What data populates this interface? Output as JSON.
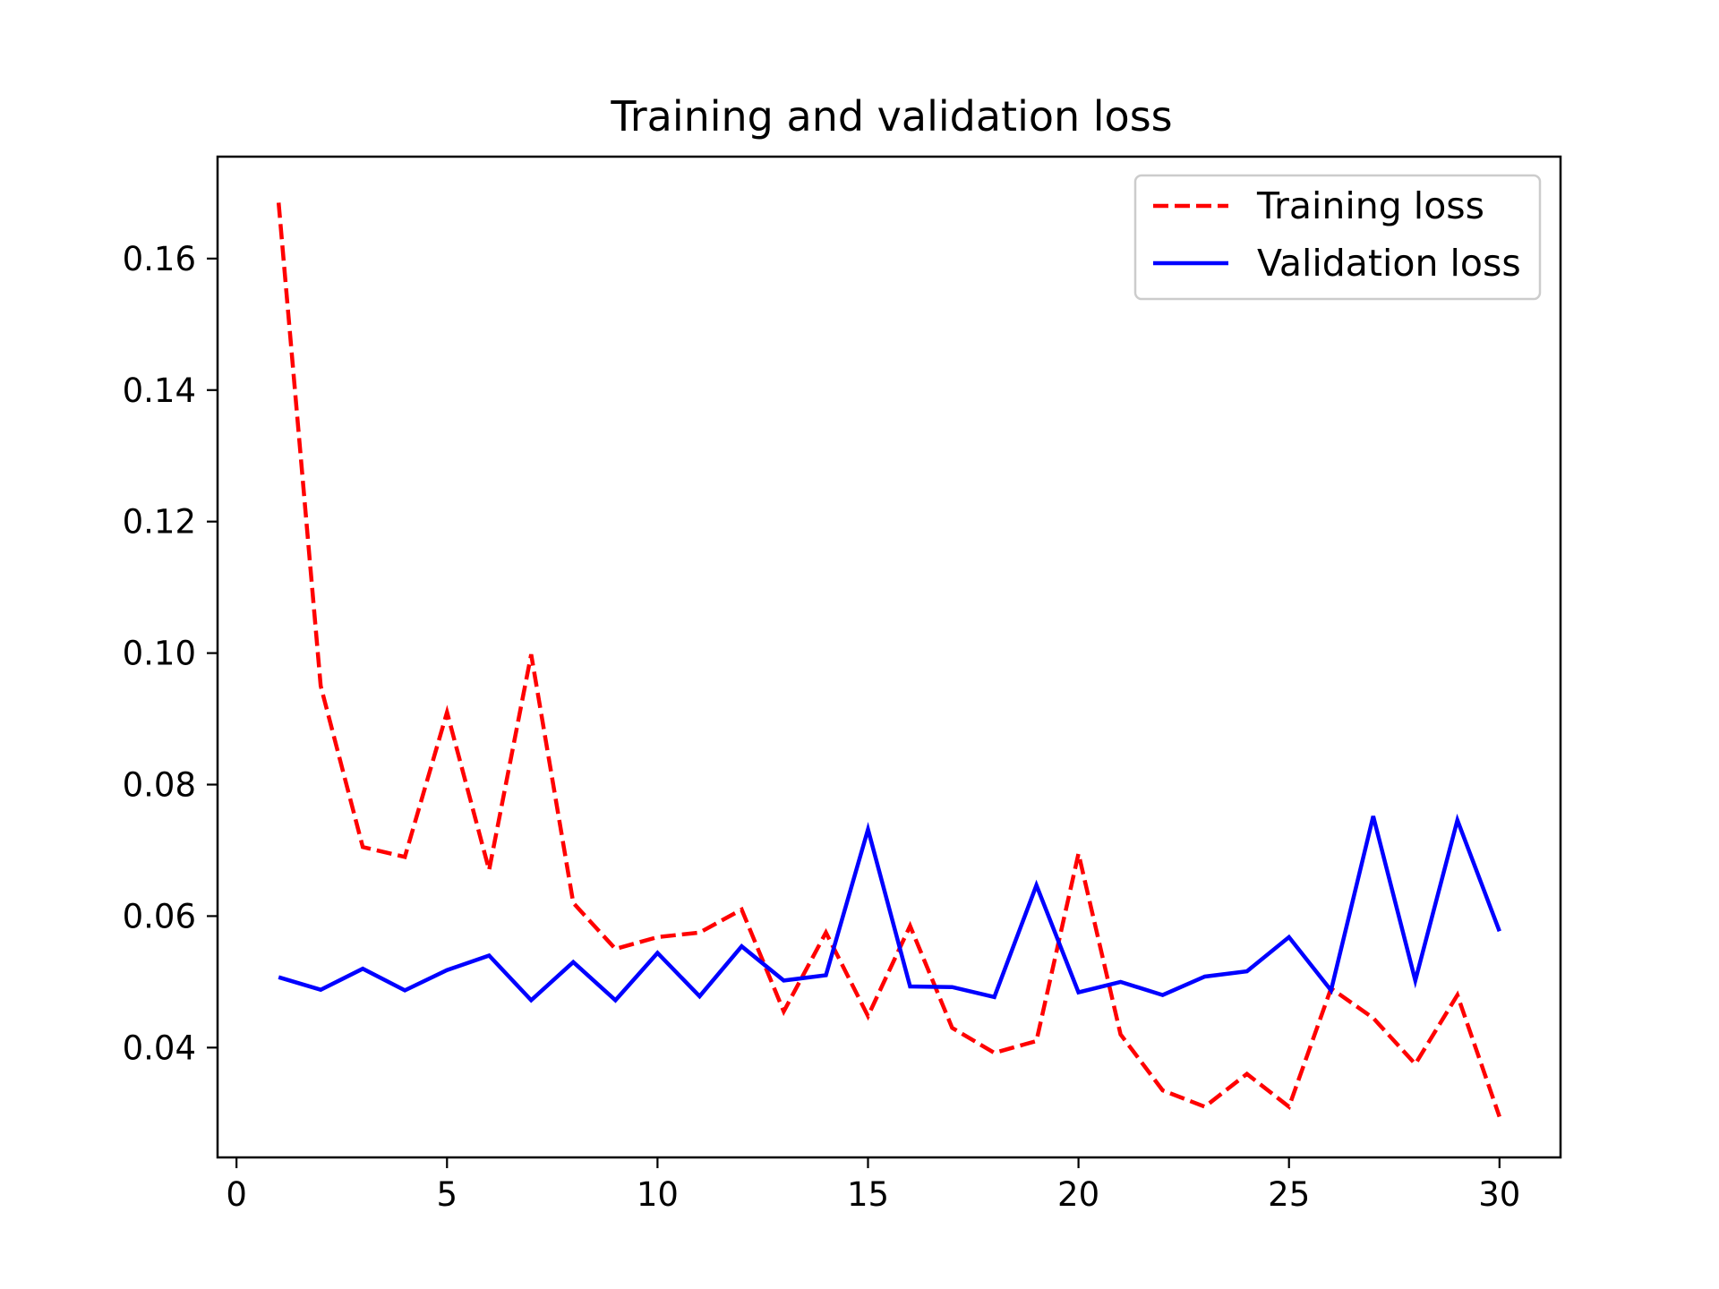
{
  "chart_data": {
    "type": "line",
    "title": "Training and validation loss",
    "xlabel": "",
    "ylabel": "",
    "xlim": [
      -0.45,
      31.45
    ],
    "ylim": [
      0.0233,
      0.1755
    ],
    "x_ticks": [
      0,
      5,
      10,
      15,
      20,
      25,
      30
    ],
    "y_ticks": [
      0.04,
      0.06,
      0.08,
      0.1,
      0.12,
      0.14,
      0.16
    ],
    "y_tick_labels": [
      "0.04",
      "0.06",
      "0.08",
      "0.10",
      "0.12",
      "0.14",
      "0.16"
    ],
    "grid": false,
    "legend_position": "top-right",
    "x": [
      1,
      2,
      3,
      4,
      5,
      6,
      7,
      8,
      9,
      10,
      11,
      12,
      13,
      14,
      15,
      16,
      17,
      18,
      19,
      20,
      21,
      22,
      23,
      24,
      25,
      26,
      27,
      28,
      29,
      30
    ],
    "series": [
      {
        "name": "Training loss",
        "color": "#ff0000",
        "style": "dashed",
        "values": [
          0.1685,
          0.095,
          0.0705,
          0.069,
          0.091,
          0.067,
          0.0998,
          0.062,
          0.055,
          0.0568,
          0.0575,
          0.061,
          0.0455,
          0.0575,
          0.0448,
          0.0585,
          0.043,
          0.0392,
          0.041,
          0.0695,
          0.042,
          0.0335,
          0.031,
          0.036,
          0.031,
          0.049,
          0.0445,
          0.0375,
          0.048,
          0.0295
        ]
      },
      {
        "name": "Validation loss",
        "color": "#0000ff",
        "style": "solid",
        "values": [
          0.0507,
          0.0488,
          0.052,
          0.0487,
          0.0518,
          0.054,
          0.0472,
          0.053,
          0.0472,
          0.0544,
          0.0478,
          0.0554,
          0.0502,
          0.051,
          0.0732,
          0.0493,
          0.0492,
          0.0477,
          0.0647,
          0.0484,
          0.05,
          0.048,
          0.0508,
          0.0516,
          0.0568,
          0.0487,
          0.0752,
          0.0502,
          0.0746,
          0.0577
        ]
      }
    ]
  }
}
